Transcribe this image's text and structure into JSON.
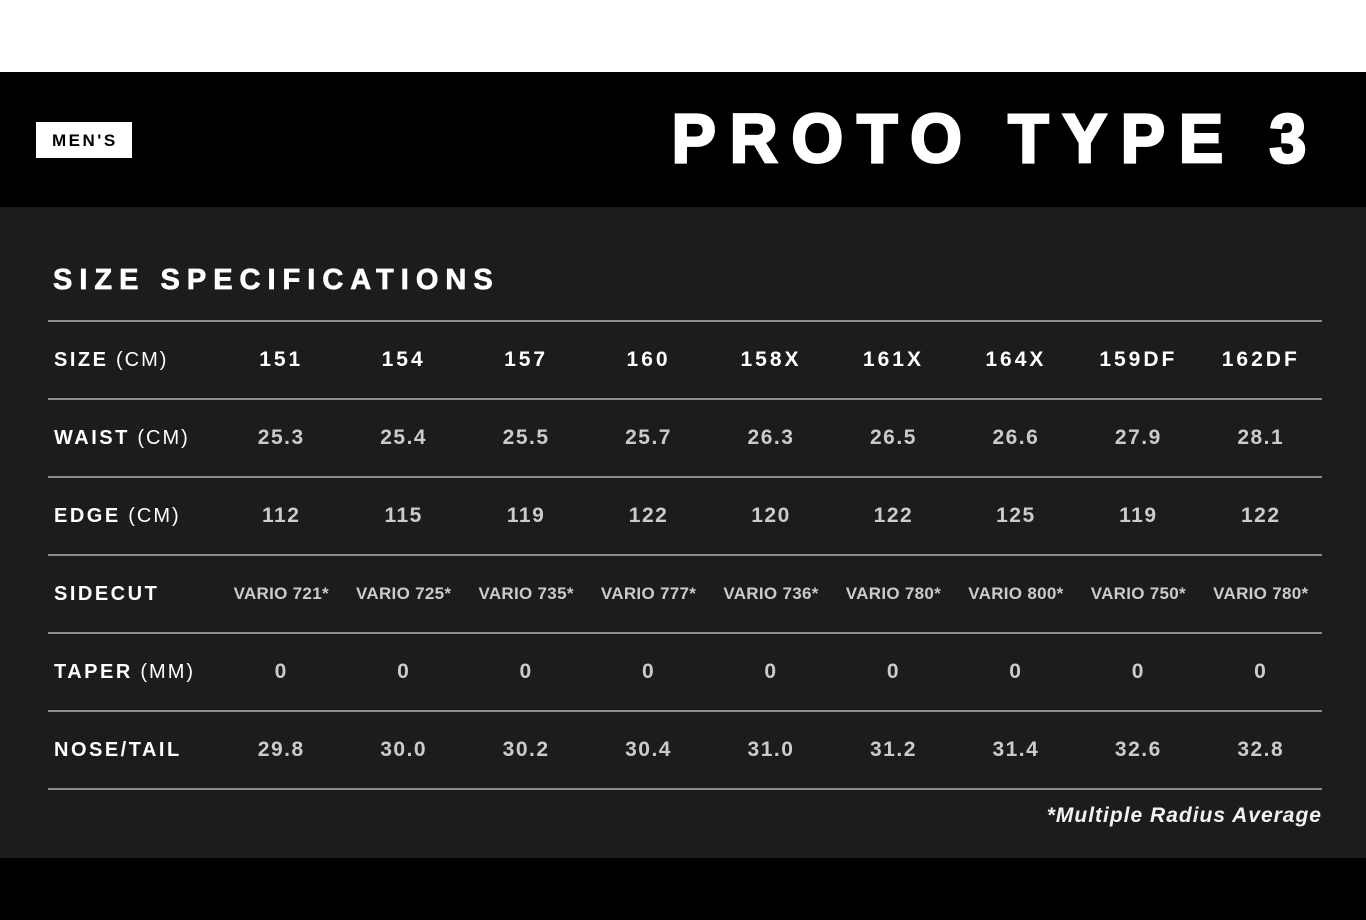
{
  "header": {
    "badge": "MEN'S",
    "title": "PROTO TYPE 3"
  },
  "colors": {
    "page_bg": "#ffffff",
    "band_bg": "#000000",
    "panel_bg": "#1b1c1c",
    "rule": "#8a8a8a",
    "label_text": "#ffffff",
    "value_text": "#cbcbcb"
  },
  "chart_data": {
    "type": "table",
    "title": "SIZE SPECIFICATIONS",
    "footnote": "*Multiple Radius Average",
    "sizes": [
      "151",
      "154",
      "157",
      "160",
      "158X",
      "161X",
      "164X",
      "159DF",
      "162DF"
    ],
    "rows": [
      {
        "label": "SIZE",
        "unit": "(CM)",
        "header": true,
        "values": [
          "151",
          "154",
          "157",
          "160",
          "158X",
          "161X",
          "164X",
          "159DF",
          "162DF"
        ]
      },
      {
        "label": "WAIST",
        "unit": "(CM)",
        "values": [
          "25.3",
          "25.4",
          "25.5",
          "25.7",
          "26.3",
          "26.5",
          "26.6",
          "27.9",
          "28.1"
        ]
      },
      {
        "label": "EDGE",
        "unit": "(CM)",
        "values": [
          "112",
          "115",
          "119",
          "122",
          "120",
          "122",
          "125",
          "119",
          "122"
        ]
      },
      {
        "label": "SIDECUT",
        "unit": "",
        "small": true,
        "values": [
          "VARIO 721*",
          "VARIO 725*",
          "VARIO 735*",
          "VARIO 777*",
          "VARIO 736*",
          "VARIO 780*",
          "VARIO 800*",
          "VARIO 750*",
          "VARIO 780*"
        ]
      },
      {
        "label": "TAPER",
        "unit": "(MM)",
        "values": [
          "0",
          "0",
          "0",
          "0",
          "0",
          "0",
          "0",
          "0",
          "0"
        ]
      },
      {
        "label": "NOSE/TAIL",
        "unit": "",
        "values": [
          "29.8",
          "30.0",
          "30.2",
          "30.4",
          "31.0",
          "31.2",
          "31.4",
          "32.6",
          "32.8"
        ]
      }
    ]
  }
}
